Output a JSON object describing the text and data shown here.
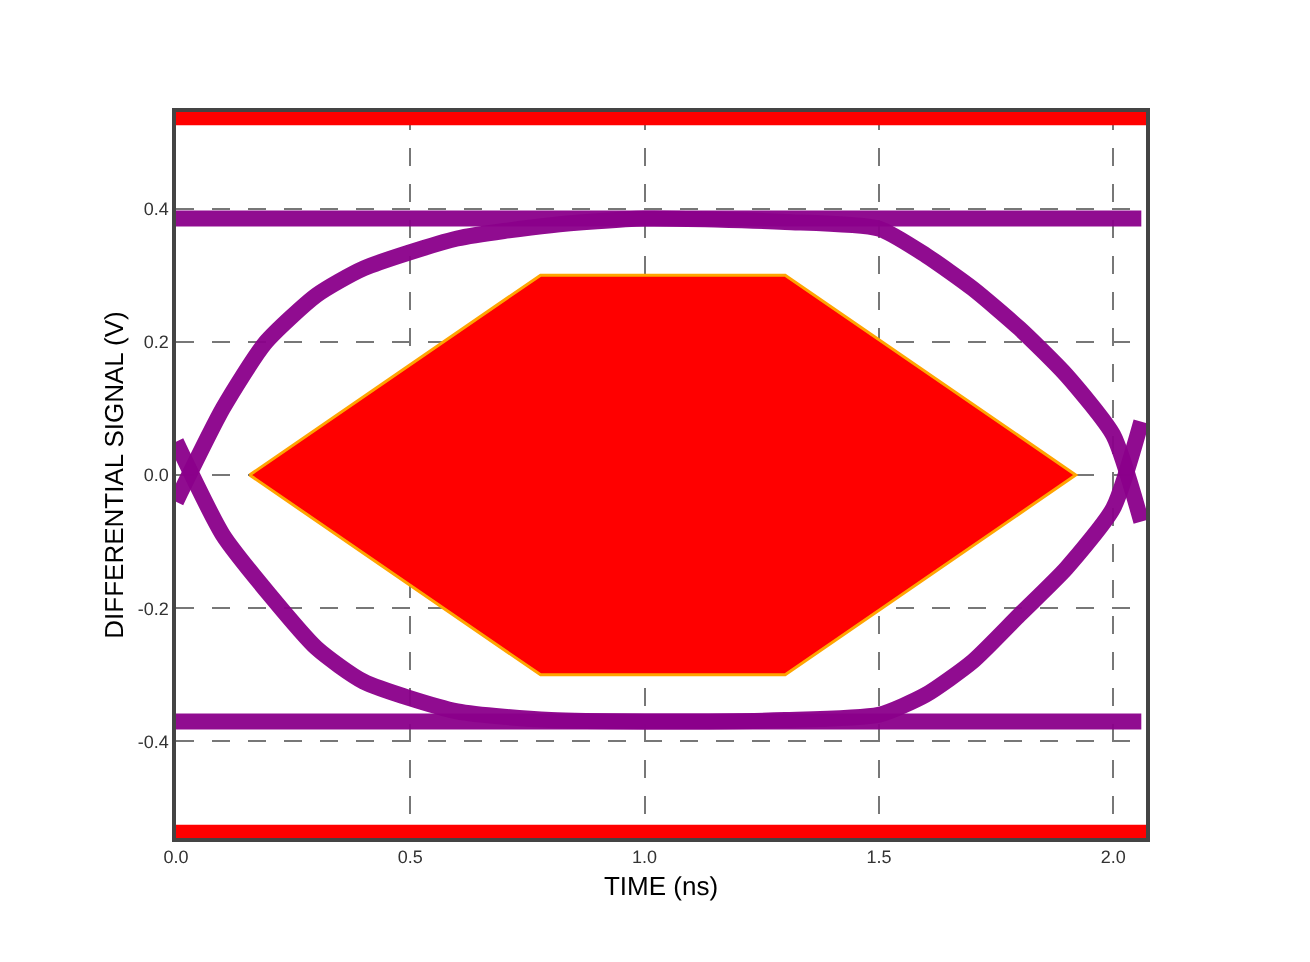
{
  "chart_data": {
    "type": "line",
    "xlabel": "TIME (ns)",
    "ylabel": "DIFFERENTIAL SIGNAL (V)",
    "xlim": [
      0,
      2.07
    ],
    "ylim": [
      -0.545,
      0.545
    ],
    "xticks": [
      {
        "value": 0,
        "label": "0.0"
      },
      {
        "value": 0.5,
        "label": "0.5"
      },
      {
        "value": 1,
        "label": "1.0"
      },
      {
        "value": 1.5,
        "label": "1.5"
      },
      {
        "value": 2,
        "label": "2.0"
      }
    ],
    "yticks": [
      {
        "value": -0.4,
        "label": "-0.4"
      },
      {
        "value": -0.2,
        "label": "-0.2"
      },
      {
        "value": 0,
        "label": "0.0"
      },
      {
        "value": 0.2,
        "label": "0.2"
      },
      {
        "value": 0.4,
        "label": "0.4"
      }
    ],
    "grid": true,
    "marker": "none",
    "line_style": "solid",
    "series": [
      {
        "type": "area",
        "color": "#ff0000",
        "x": [
          0.157,
          0.778,
          1.3,
          1.92,
          1.3,
          0.778,
          0.157
        ],
        "values": [
          0,
          0.3,
          0.3,
          0,
          -0.3,
          -0.3,
          0
        ]
      },
      {
        "color": "#8b008b",
        "x": [
          0,
          0.5,
          1,
          1.5,
          2.06
        ],
        "values": [
          0.385,
          0.385,
          0.385,
          0.385,
          0.385
        ]
      },
      {
        "color": "#8b008b",
        "x": [
          0,
          0.5,
          1,
          1.5,
          2.06
        ],
        "values": [
          -0.37,
          -0.37,
          -0.37,
          -0.37,
          -0.37
        ]
      },
      {
        "color": "#8b008b",
        "x": [
          0,
          0.1,
          0.19,
          0.3,
          0.4,
          0.6,
          0.8,
          1,
          1.3,
          1.5,
          1.6,
          1.7,
          1.8,
          1.9,
          2.0,
          2.06
        ],
        "values": [
          -0.04,
          0.1,
          0.198,
          0.27,
          0.31,
          0.355,
          0.375,
          0.385,
          0.38,
          0.37,
          0.33,
          0.28,
          0.22,
          0.15,
          0.06,
          -0.07
        ]
      },
      {
        "color": "#8b008b",
        "x": [
          0,
          0.1,
          0.2,
          0.3,
          0.4,
          0.6,
          0.8,
          1,
          1.3,
          1.5,
          1.6,
          1.7,
          1.8,
          1.9,
          2.0,
          2.06
        ],
        "values": [
          0.05,
          -0.09,
          -0.18,
          -0.26,
          -0.31,
          -0.355,
          -0.368,
          -0.37,
          -0.368,
          -0.36,
          -0.33,
          -0.28,
          -0.21,
          -0.14,
          -0.05,
          0.08
        ]
      }
    ],
    "bands": [
      {
        "axis": "y",
        "from": 0.525,
        "to": 0.545,
        "color": "#ff0000"
      },
      {
        "axis": "y",
        "from": -0.545,
        "to": -0.525,
        "color": "#ff0000"
      }
    ]
  }
}
